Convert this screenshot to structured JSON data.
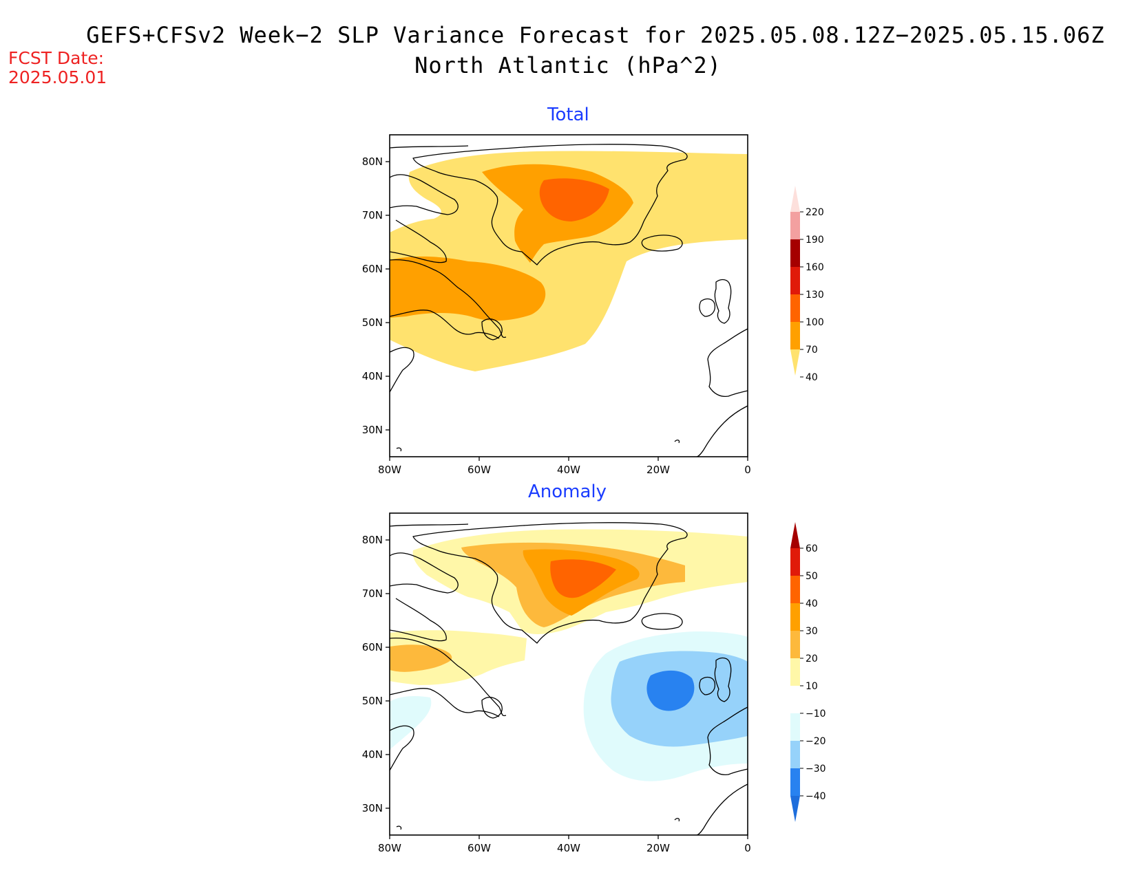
{
  "header": {
    "title_line1": "GEFS+CFSv2 Week−2 SLP Variance Forecast for 2025.05.08.12Z−2025.05.15.06Z",
    "title_line2": "North Atlantic (hPa^2)",
    "fcst_label": "FCST Date:",
    "fcst_date": "2025.05.01"
  },
  "map_extent": {
    "lon": [
      -80,
      0
    ],
    "lat": [
      25,
      85
    ]
  },
  "axes": {
    "lat_ticks": [
      "80N",
      "70N",
      "60N",
      "50N",
      "40N",
      "30N"
    ],
    "lon_ticks": [
      "80W",
      "60W",
      "40W",
      "20W",
      "0"
    ]
  },
  "panels": [
    {
      "title": "Total",
      "colorbar": {
        "labels": [
          "220",
          "190",
          "160",
          "130",
          "100",
          "70",
          "40"
        ],
        "colors": [
          "#fde0dc",
          "#f3a0a0",
          "#a50000",
          "#e01a0a",
          "#ff6400",
          "#ffa000",
          "#ffe26e"
        ]
      }
    },
    {
      "title": "Anomaly",
      "colorbar": {
        "labels": [
          "60",
          "50",
          "40",
          "30",
          "20",
          "10",
          "−10",
          "−20",
          "−30",
          "−40"
        ],
        "colors": [
          "#a50000",
          "#e01a0a",
          "#ff6400",
          "#ffa000",
          "#fdb93c",
          "#fff7a8",
          "#ffffff",
          "#e0fbfc",
          "#96d2fa",
          "#2882f0",
          "#1e6edc"
        ]
      }
    }
  ],
  "colors": {
    "title_accent": "#1a3cff",
    "fcst_red": "#ee2222"
  }
}
